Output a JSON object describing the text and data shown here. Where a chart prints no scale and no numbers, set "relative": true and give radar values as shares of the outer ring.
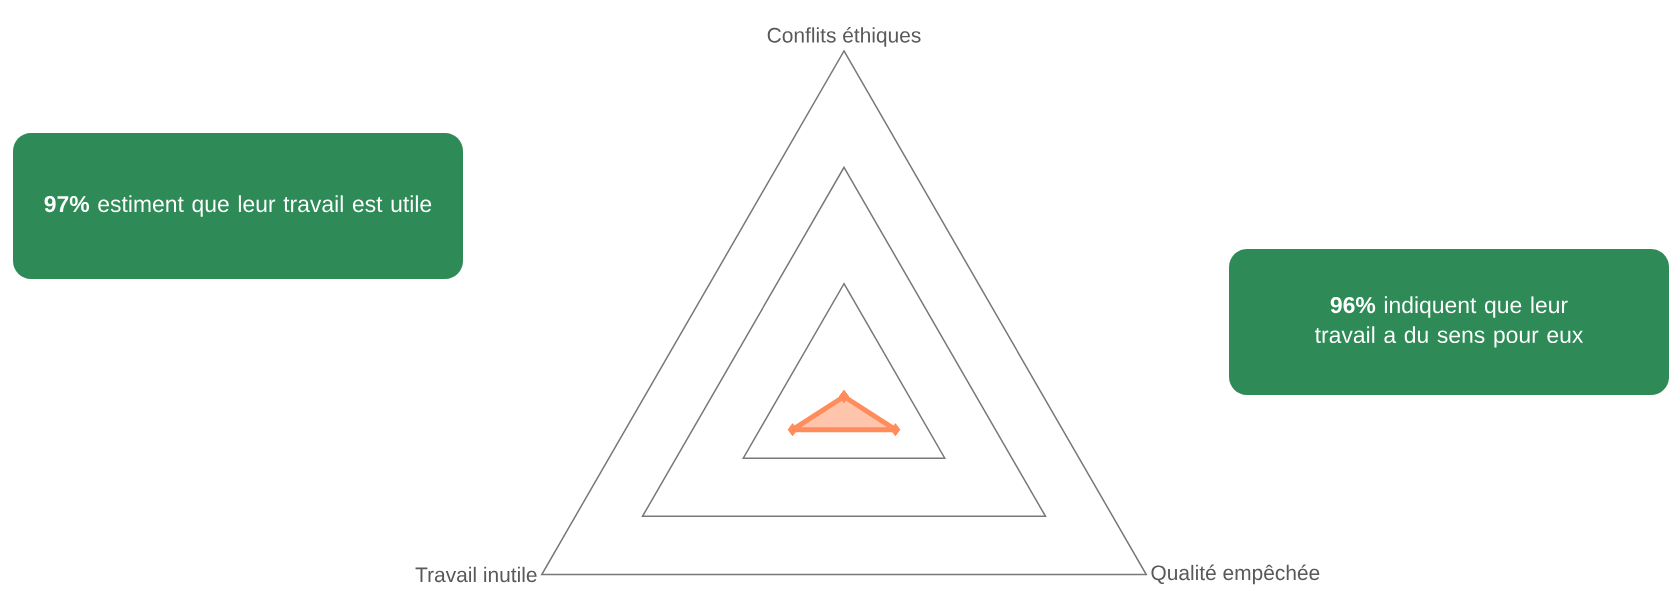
{
  "chart_data": {
    "type": "radar",
    "relative": true,
    "grid": true,
    "marker": "diamond",
    "categories": [
      "Conflits éthiques",
      "Qualité empêchée",
      "Travail inutile"
    ],
    "series": [
      {
        "color": "#ff8c5a",
        "values": [
          0.01,
          0.17,
          0.17
        ]
      }
    ],
    "annotations": [
      "**97%** estiment que leur travail est utile",
      "**96%** indiquent que leur travail a du sens pour eux"
    ]
  }
}
